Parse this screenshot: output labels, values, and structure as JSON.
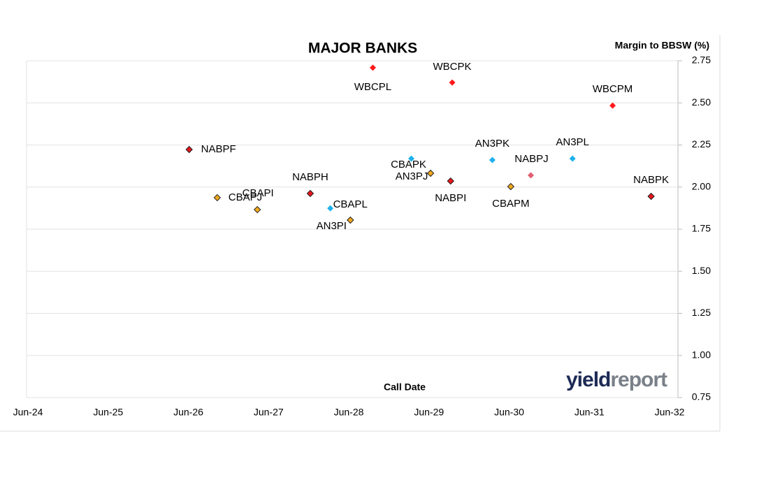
{
  "chart_data": {
    "type": "scatter",
    "title": "MAJOR BANKS",
    "y_label": "Margin to BBSW (%)",
    "x_label": "Call Date",
    "logo_parts": [
      "yield",
      "report"
    ],
    "grid": true,
    "xlim": [
      2024.5,
      2032.5
    ],
    "ylim": [
      0.75,
      2.75
    ],
    "xticks": [
      {
        "value": 2024.5,
        "label": "Jun-24"
      },
      {
        "value": 2025.5,
        "label": "Jun-25"
      },
      {
        "value": 2026.5,
        "label": "Jun-26"
      },
      {
        "value": 2027.5,
        "label": "Jun-27"
      },
      {
        "value": 2028.5,
        "label": "Jun-28"
      },
      {
        "value": 2029.5,
        "label": "Jun-29"
      },
      {
        "value": 2030.5,
        "label": "Jun-30"
      },
      {
        "value": 2031.5,
        "label": "Jun-31"
      },
      {
        "value": 2032.5,
        "label": "Jun-32"
      }
    ],
    "yticks": [
      0.75,
      {
        "value": 1,
        "label": "1.00"
      },
      1.25,
      {
        "value": 1.5,
        "label": "1.50"
      },
      1.75,
      {
        "value": 2,
        "label": "2.00"
      },
      2.25,
      {
        "value": 2.5,
        "label": "2.50"
      },
      2.75
    ],
    "points": [
      {
        "label": "NABPF",
        "x": 2026.51,
        "y": 2.223,
        "color": "#e8141b"
      },
      {
        "label": "CBAPJ",
        "x": 2026.86,
        "y": 1.937,
        "color": "#f2a81c"
      },
      {
        "label": "CBAPI",
        "x": 2027.36,
        "y": 1.866,
        "color": "#f2a81c"
      },
      {
        "label": "NABPH",
        "x": 2028.02,
        "y": 1.962,
        "color": "#e8141b"
      },
      {
        "label": "CBAPL",
        "x": 2028.27,
        "y": 1.874,
        "color": "#1fb1ec"
      },
      {
        "label": "AN3PI",
        "x": 2028.52,
        "y": 1.804,
        "color": "#f2a81c"
      },
      {
        "label": "WBCPL",
        "x": 2028.8,
        "y": 2.709,
        "color": "#ff1a1a"
      },
      {
        "label": "CBAPK",
        "x": 2029.28,
        "y": 2.169,
        "color": "#1fb1ec"
      },
      {
        "label": "AN3PJ",
        "x": 2029.52,
        "y": 2.082,
        "color": "#f2a81c"
      },
      {
        "label": "WBCPK",
        "x": 2029.79,
        "y": 2.621,
        "color": "#ff1a1a"
      },
      {
        "label": "NABPI",
        "x": 2029.77,
        "y": 2.036,
        "color": "#e8141b"
      },
      {
        "label": "AN3PK",
        "x": 2030.29,
        "y": 2.161,
        "color": "#1fb1ec"
      },
      {
        "label": "CBAPM",
        "x": 2030.52,
        "y": 2.003,
        "color": "#f2a81c"
      },
      {
        "label": "NABPJ",
        "x": 2030.77,
        "y": 2.07,
        "color": "#e06070"
      },
      {
        "label": "AN3PL",
        "x": 2031.29,
        "y": 2.169,
        "color": "#1fb1ec"
      },
      {
        "label": "WBCPM",
        "x": 2031.79,
        "y": 2.484,
        "color": "#ff1a1a"
      },
      {
        "label": "NABPK",
        "x": 2032.27,
        "y": 1.945,
        "color": "#e8141b"
      }
    ]
  }
}
